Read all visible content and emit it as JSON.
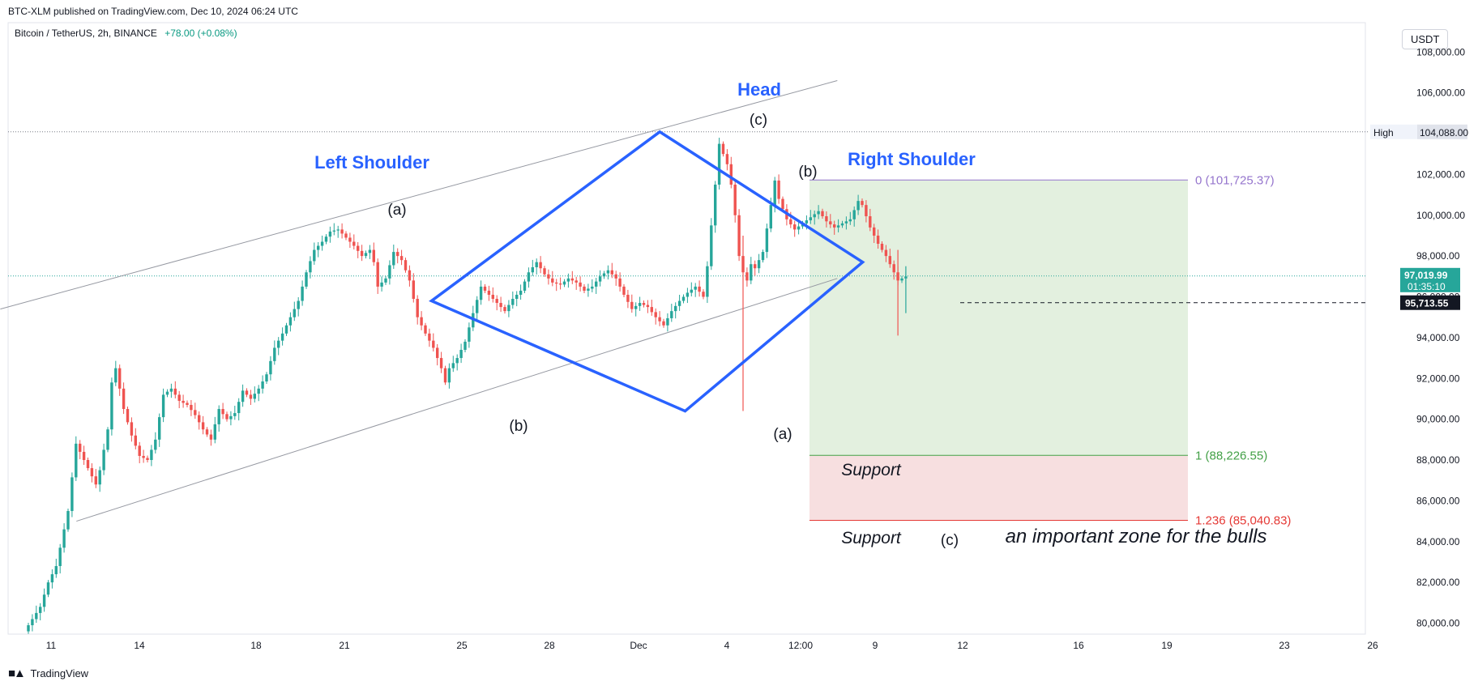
{
  "header": {
    "published": "BTC-XLM published on TradingView.com, Dec 10, 2024 06:24 UTC",
    "symbol": "Bitcoin / TetherUS, 2h, BINANCE",
    "change": "+78.00 (+0.08%)"
  },
  "currency_button": "USDT",
  "footer_logo": "TradingView",
  "colors": {
    "up": "#26a69a",
    "down": "#ef5350",
    "pattern": "#2962ff",
    "label_blue": "#2962ff",
    "profit_zone": "#e3f0df",
    "loss_zone": "#f7dfe0",
    "fib0": "#9575cd",
    "fib1": "#43a047",
    "fib1236": "#e53935"
  },
  "chart_data": {
    "type": "candlestick",
    "symbol": "Bitcoin / TetherUS",
    "interval": "2h",
    "exchange": "BINANCE",
    "y_axis_ticks": [
      80000,
      82000,
      84000,
      86000,
      88000,
      90000,
      92000,
      94000,
      96000,
      98000,
      100000,
      102000,
      104000,
      106000,
      108000
    ],
    "y_axis_tick_labels": [
      "80,000.00",
      "82,000.00",
      "84,000.00",
      "86,000.00",
      "88,000.00",
      "90,000.00",
      "92,000.00",
      "94,000.00",
      "96,000.00",
      "98,000.00",
      "100,000.00",
      "102,000.00",
      "104,000.00",
      "106,000.00",
      "108,000.00"
    ],
    "x_axis_ticks": [
      "11",
      "14",
      "18",
      "21",
      "25",
      "28",
      "Dec",
      "4",
      "12:00",
      "9",
      "12",
      "16",
      "19",
      "23",
      "26"
    ],
    "ylim": [
      79200,
      109500
    ],
    "price_tags": {
      "high_label": "High",
      "high_value": "104,088.00",
      "last_price": "97,019.99",
      "countdown": "01:35:10",
      "dashed_level": "95,713.55"
    },
    "path_points": [
      [
        0,
        79600
      ],
      [
        2,
        80200
      ],
      [
        4,
        80800
      ],
      [
        6,
        82000
      ],
      [
        8,
        82800
      ],
      [
        11,
        85500
      ],
      [
        13,
        88800
      ],
      [
        15,
        88000
      ],
      [
        17,
        87200
      ],
      [
        18,
        86800
      ],
      [
        19,
        87500
      ],
      [
        21,
        89500
      ],
      [
        22,
        91800
      ],
      [
        23,
        92500
      ],
      [
        25,
        90500
      ],
      [
        27,
        89200
      ],
      [
        29,
        88200
      ],
      [
        31,
        88000
      ],
      [
        33,
        89000
      ],
      [
        35,
        91200
      ],
      [
        37,
        91500
      ],
      [
        39,
        90900
      ],
      [
        41,
        90700
      ],
      [
        43,
        90200
      ],
      [
        45,
        89500
      ],
      [
        47,
        89000
      ],
      [
        49,
        90500
      ],
      [
        51,
        90000
      ],
      [
        53,
        90300
      ],
      [
        55,
        91400
      ],
      [
        57,
        91000
      ],
      [
        59,
        91500
      ],
      [
        61,
        92200
      ],
      [
        63,
        93500
      ],
      [
        65,
        94200
      ],
      [
        67,
        95000
      ],
      [
        69,
        95800
      ],
      [
        71,
        97200
      ],
      [
        73,
        98300
      ],
      [
        75,
        98700
      ],
      [
        77,
        99200
      ],
      [
        79,
        99300
      ],
      [
        81,
        98900
      ],
      [
        83,
        98500
      ],
      [
        85,
        98000
      ],
      [
        87,
        98300
      ],
      [
        88,
        97700
      ],
      [
        89,
        96500
      ],
      [
        91,
        96900
      ],
      [
        93,
        98200
      ],
      [
        95,
        97800
      ],
      [
        96,
        97300
      ],
      [
        97,
        96800
      ],
      [
        98,
        95900
      ],
      [
        99,
        95000
      ],
      [
        101,
        94200
      ],
      [
        103,
        93500
      ],
      [
        105,
        92500
      ],
      [
        106,
        91800
      ],
      [
        107,
        92500
      ],
      [
        109,
        93000
      ],
      [
        111,
        93800
      ],
      [
        113,
        95200
      ],
      [
        115,
        96500
      ],
      [
        117,
        96100
      ],
      [
        119,
        95700
      ],
      [
        121,
        95300
      ],
      [
        123,
        95900
      ],
      [
        125,
        96300
      ],
      [
        127,
        97200
      ],
      [
        129,
        97700
      ],
      [
        131,
        97100
      ],
      [
        133,
        96700
      ],
      [
        135,
        96600
      ],
      [
        137,
        96900
      ],
      [
        139,
        96700
      ],
      [
        141,
        96300
      ],
      [
        143,
        96500
      ],
      [
        145,
        97000
      ],
      [
        147,
        97300
      ],
      [
        149,
        96900
      ],
      [
        151,
        96100
      ],
      [
        153,
        95400
      ],
      [
        155,
        95700
      ],
      [
        157,
        95500
      ],
      [
        159,
        95000
      ],
      [
        161,
        94600
      ],
      [
        163,
        95300
      ],
      [
        165,
        95800
      ],
      [
        167,
        96200
      ],
      [
        169,
        96500
      ],
      [
        171,
        96000
      ],
      [
        172,
        97500
      ],
      [
        173,
        99500
      ],
      [
        174,
        101500
      ],
      [
        175,
        103500
      ],
      [
        176,
        103000
      ],
      [
        177,
        102500
      ],
      [
        178,
        101500
      ],
      [
        179,
        100000
      ],
      [
        180,
        98000
      ],
      [
        181,
        97200
      ],
      [
        182,
        96800
      ],
      [
        183,
        97600
      ],
      [
        184,
        97400
      ],
      [
        186,
        98200
      ],
      [
        188,
        100500
      ],
      [
        189,
        101700
      ],
      [
        190,
        100800
      ],
      [
        192,
        99800
      ],
      [
        194,
        99300
      ],
      [
        196,
        99600
      ],
      [
        198,
        99900
      ],
      [
        200,
        100200
      ],
      [
        202,
        99700
      ],
      [
        204,
        99400
      ],
      [
        206,
        99600
      ],
      [
        208,
        99800
      ],
      [
        210,
        100700
      ],
      [
        211,
        100500
      ],
      [
        213,
        99400
      ],
      [
        215,
        98600
      ],
      [
        217,
        98000
      ],
      [
        219,
        97200
      ],
      [
        220,
        96800
      ],
      [
        222,
        97000
      ]
    ],
    "trendlines": [
      {
        "name": "upper-channel",
        "points": [
          [
            "Nov 9",
            95400
          ],
          [
            "Dec 12",
            106600
          ]
        ]
      },
      {
        "name": "lower-channel",
        "points": [
          [
            "Nov 12",
            85000
          ],
          [
            "Dec 12",
            96900
          ]
        ]
      }
    ],
    "diamond_pattern": {
      "left": [
        "Nov 26",
        95800
      ],
      "top": [
        "Dec 5",
        104088
      ],
      "right": [
        "Dec 13",
        97700
      ],
      "bottom": [
        "Dec 6",
        90400
      ]
    },
    "fibonacci_levels": [
      {
        "label": "0 (101,725.37)",
        "value": 101725.37
      },
      {
        "label": "1 (88,226.55)",
        "value": 88226.55
      },
      {
        "label": "1.236 (85,040.83)",
        "value": 85040.83
      }
    ],
    "annotations": {
      "left_shoulder": "Left Shoulder",
      "head": "Head",
      "right_shoulder": "Right Shoulder",
      "a_left": "(a)",
      "b_left": "(b)",
      "c_head": "(c)",
      "a_mid": "(a)",
      "b_right": "(b)",
      "c_bottom": "(c)",
      "support_upper": "Support",
      "support_lower": "Support",
      "zone_note": "an important zone for the bulls"
    }
  }
}
